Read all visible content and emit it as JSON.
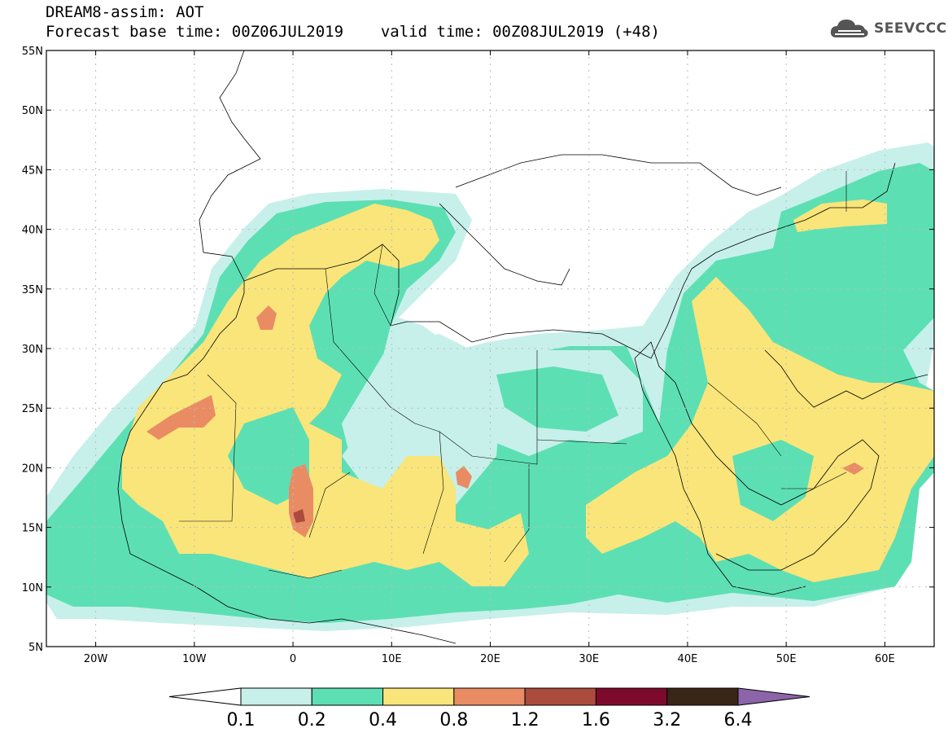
{
  "header": {
    "title_line1": "DREAM8-assim: AOT",
    "forecast_base": "Forecast base time: 00Z06JUL2019",
    "valid_time": "valid time: 00Z08JUL2019 (+48)"
  },
  "logo": {
    "text": "SEEVCCC",
    "icon": "cloud-icon"
  },
  "map": {
    "lon_range": [
      -25,
      65
    ],
    "lat_range": [
      5,
      55
    ],
    "lat_ticks": [
      {
        "value": 55,
        "label": "55N"
      },
      {
        "value": 50,
        "label": "50N"
      },
      {
        "value": 45,
        "label": "45N"
      },
      {
        "value": 40,
        "label": "40N"
      },
      {
        "value": 35,
        "label": "35N"
      },
      {
        "value": 30,
        "label": "30N"
      },
      {
        "value": 25,
        "label": "25N"
      },
      {
        "value": 20,
        "label": "20N"
      },
      {
        "value": 15,
        "label": "15N"
      },
      {
        "value": 10,
        "label": "10N"
      },
      {
        "value": 5,
        "label": "5N"
      }
    ],
    "lon_ticks": [
      {
        "value": -20,
        "label": "20W"
      },
      {
        "value": -10,
        "label": "10W"
      },
      {
        "value": 0,
        "label": "0"
      },
      {
        "value": 10,
        "label": "10E"
      },
      {
        "value": 20,
        "label": "20E"
      },
      {
        "value": 30,
        "label": "30E"
      },
      {
        "value": 40,
        "label": "40E"
      },
      {
        "value": 50,
        "label": "50E"
      },
      {
        "value": 60,
        "label": "60E"
      }
    ],
    "grid": true
  },
  "colorbar": {
    "levels": [
      "0.1",
      "0.2",
      "0.4",
      "0.8",
      "1.2",
      "1.6",
      "3.2",
      "6.4"
    ],
    "colors": [
      "#c7f0ea",
      "#5ddfb4",
      "#f9e57a",
      "#e98c64",
      "#aa4b3e",
      "#7d0a2c",
      "#3a2616",
      "#8c64aa"
    ],
    "under_color": "#ffffff"
  }
}
